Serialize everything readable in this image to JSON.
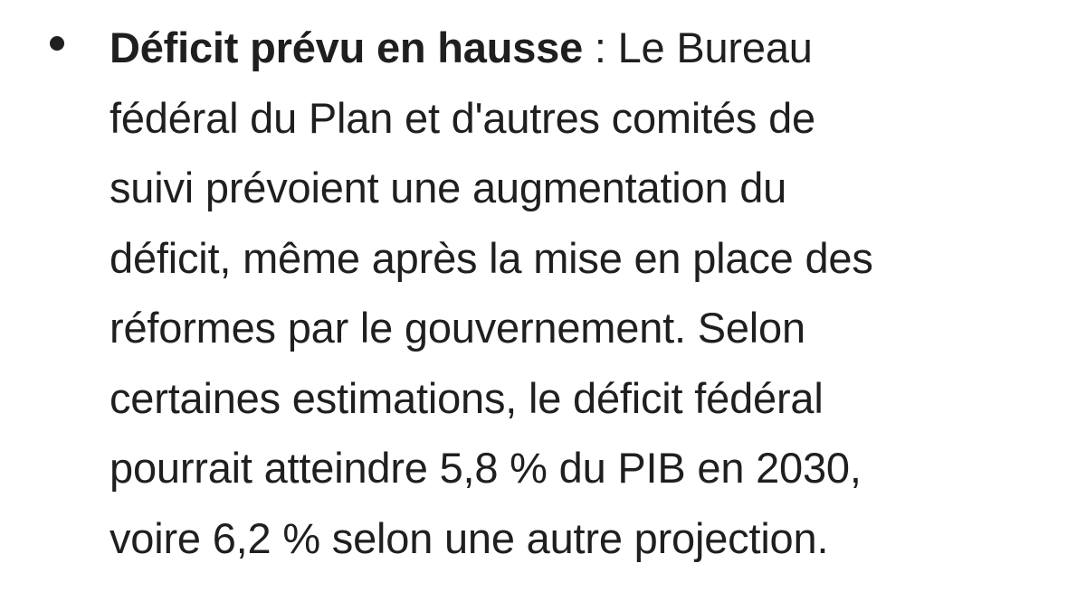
{
  "bullet": {
    "lead": "Déficit prévu en hausse",
    "separator": " : ",
    "lines": [
      "Le Bureau",
      "fédéral du Plan et d'autres comités de",
      "suivi prévoient une augmentation du",
      "déficit, même après la mise en place des",
      "réformes par le gouvernement. Selon",
      "certaines estimations, le déficit fédéral",
      "pourrait atteindre 5,8 % du PIB en 2030,",
      "voire 6,2 % selon une autre projection."
    ]
  }
}
